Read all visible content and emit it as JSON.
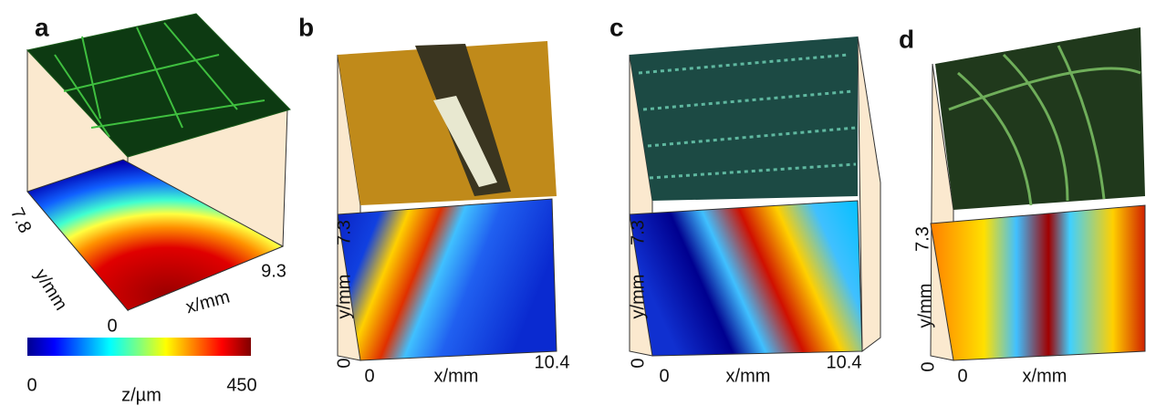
{
  "panels": [
    {
      "label": "a",
      "y_max": "7.8",
      "y_label": "y/mm",
      "origin": "0",
      "x_label": "x/mm",
      "x_max": "9.3"
    },
    {
      "label": "b",
      "y_max": "7.3",
      "y_label": "y/mm",
      "y_min": "0",
      "x_min": "0",
      "x_label": "x/mm",
      "x_max": "10.4"
    },
    {
      "label": "c",
      "y_max": "7.3",
      "y_label": "y/mm",
      "y_min": "0",
      "x_min": "0",
      "x_label": "x/mm",
      "x_max": "10.4"
    },
    {
      "label": "d",
      "y_max": "7.3",
      "y_label": "y/mm",
      "y_min": "0",
      "x_min": "0",
      "x_label": "x/mm"
    }
  ],
  "colorbar": {
    "min": "0",
    "label": "z/µm",
    "max": "450"
  }
}
